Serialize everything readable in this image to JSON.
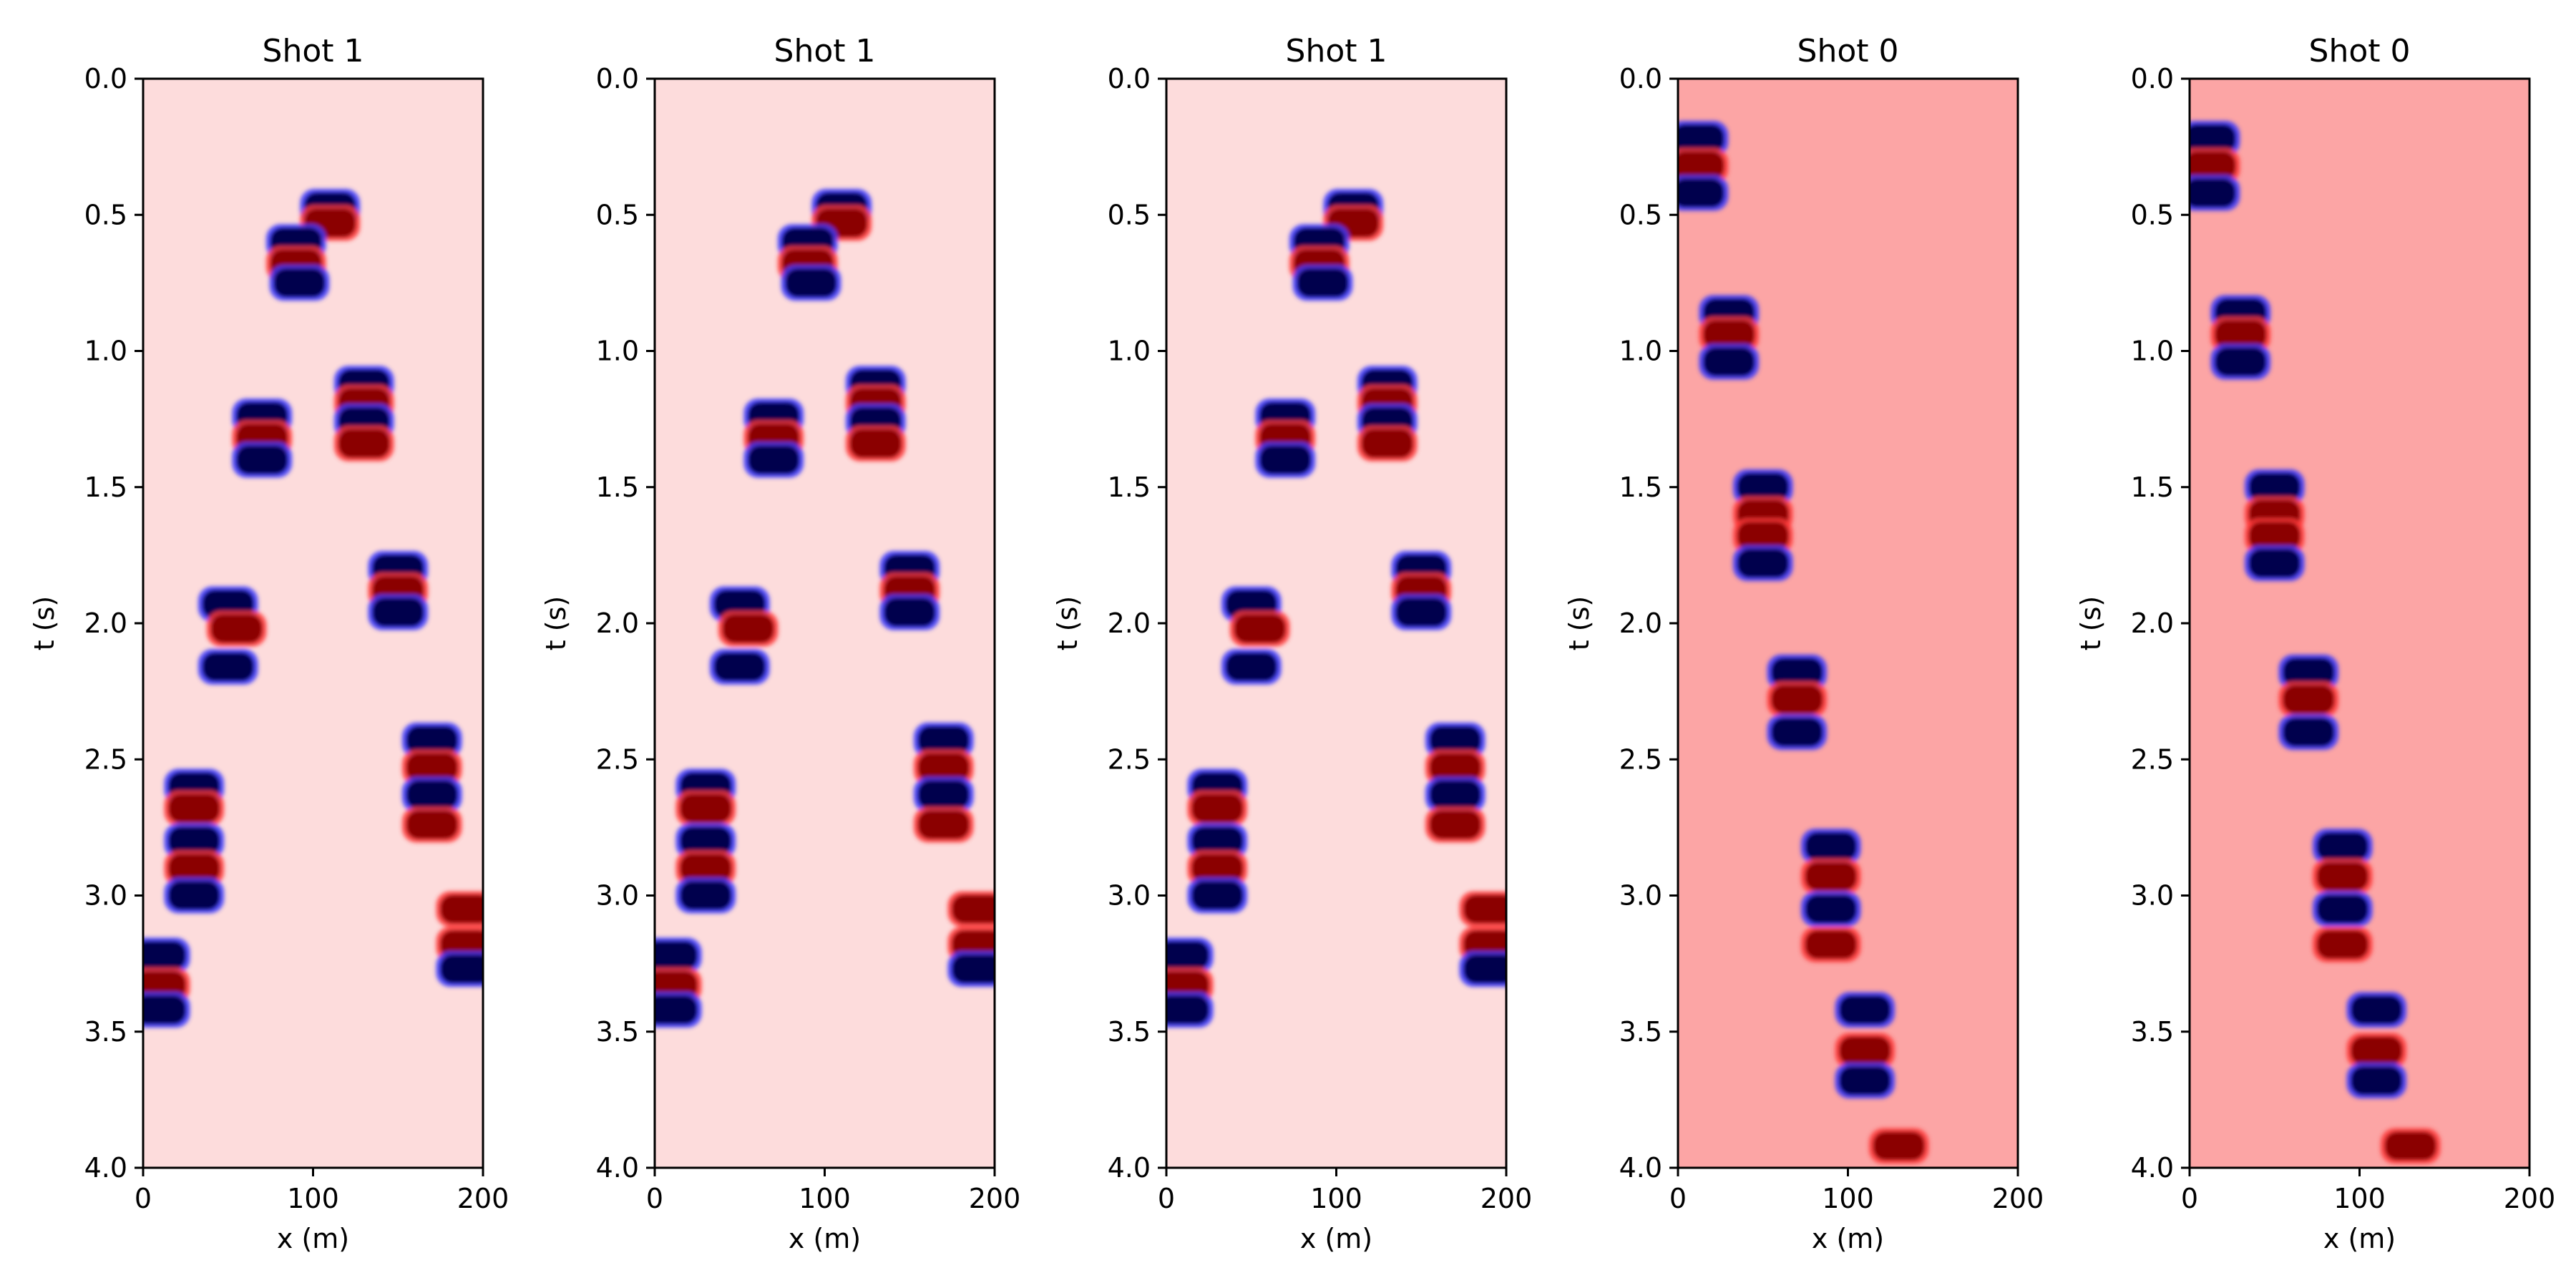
{
  "chart_data": [
    {
      "type": "heatmap",
      "title": "Shot 1",
      "xlabel": "x (m)",
      "ylabel": "t (s)",
      "xlim": [
        0,
        200
      ],
      "ylim": [
        4.0,
        0.0
      ],
      "x_ticks": [
        "0",
        "100",
        "200"
      ],
      "y_ticks": [
        "0.0",
        "0.5",
        "1.0",
        "1.5",
        "2.0",
        "2.5",
        "3.0",
        "3.5",
        "4.0"
      ],
      "colormap": "seismic",
      "background_color": "#fddcdc",
      "grid": false,
      "events": [
        {
          "x": 110,
          "t": 0.47,
          "sign": -1
        },
        {
          "x": 110,
          "t": 0.53,
          "sign": 1
        },
        {
          "x": 90,
          "t": 0.6,
          "sign": -1
        },
        {
          "x": 90,
          "t": 0.68,
          "sign": 1
        },
        {
          "x": 92,
          "t": 0.75,
          "sign": -1
        },
        {
          "x": 130,
          "t": 1.12,
          "sign": -1
        },
        {
          "x": 130,
          "t": 1.19,
          "sign": 1
        },
        {
          "x": 130,
          "t": 1.26,
          "sign": -1
        },
        {
          "x": 130,
          "t": 1.34,
          "sign": 1
        },
        {
          "x": 70,
          "t": 1.24,
          "sign": -1
        },
        {
          "x": 70,
          "t": 1.32,
          "sign": 1
        },
        {
          "x": 70,
          "t": 1.4,
          "sign": -1
        },
        {
          "x": 150,
          "t": 1.8,
          "sign": -1
        },
        {
          "x": 150,
          "t": 1.88,
          "sign": 1
        },
        {
          "x": 150,
          "t": 1.96,
          "sign": -1
        },
        {
          "x": 50,
          "t": 1.93,
          "sign": -1
        },
        {
          "x": 55,
          "t": 2.02,
          "sign": 1
        },
        {
          "x": 50,
          "t": 2.16,
          "sign": -1
        },
        {
          "x": 170,
          "t": 2.43,
          "sign": -1
        },
        {
          "x": 170,
          "t": 2.53,
          "sign": 1
        },
        {
          "x": 170,
          "t": 2.63,
          "sign": -1
        },
        {
          "x": 170,
          "t": 2.74,
          "sign": 1
        },
        {
          "x": 30,
          "t": 2.6,
          "sign": -1
        },
        {
          "x": 30,
          "t": 2.68,
          "sign": 1
        },
        {
          "x": 30,
          "t": 2.8,
          "sign": -1
        },
        {
          "x": 30,
          "t": 2.9,
          "sign": 1
        },
        {
          "x": 30,
          "t": 3.0,
          "sign": -1
        },
        {
          "x": 190,
          "t": 3.05,
          "sign": 1
        },
        {
          "x": 190,
          "t": 3.18,
          "sign": 1
        },
        {
          "x": 190,
          "t": 3.27,
          "sign": -1
        },
        {
          "x": 10,
          "t": 3.22,
          "sign": -1
        },
        {
          "x": 10,
          "t": 3.33,
          "sign": 1
        },
        {
          "x": 10,
          "t": 3.42,
          "sign": -1
        }
      ]
    },
    {
      "type": "heatmap",
      "title": "Shot 1",
      "xlabel": "x (m)",
      "ylabel": "t (s)",
      "xlim": [
        0,
        200
      ],
      "ylim": [
        4.0,
        0.0
      ],
      "x_ticks": [
        "0",
        "100",
        "200"
      ],
      "y_ticks": [
        "0.0",
        "0.5",
        "1.0",
        "1.5",
        "2.0",
        "2.5",
        "3.0",
        "3.5",
        "4.0"
      ],
      "colormap": "seismic",
      "background_color": "#fddcdc",
      "grid": false,
      "events": [
        {
          "x": 110,
          "t": 0.47,
          "sign": -1
        },
        {
          "x": 110,
          "t": 0.53,
          "sign": 1
        },
        {
          "x": 90,
          "t": 0.6,
          "sign": -1
        },
        {
          "x": 90,
          "t": 0.68,
          "sign": 1
        },
        {
          "x": 92,
          "t": 0.75,
          "sign": -1
        },
        {
          "x": 130,
          "t": 1.12,
          "sign": -1
        },
        {
          "x": 130,
          "t": 1.19,
          "sign": 1
        },
        {
          "x": 130,
          "t": 1.26,
          "sign": -1
        },
        {
          "x": 130,
          "t": 1.34,
          "sign": 1
        },
        {
          "x": 70,
          "t": 1.24,
          "sign": -1
        },
        {
          "x": 70,
          "t": 1.32,
          "sign": 1
        },
        {
          "x": 70,
          "t": 1.4,
          "sign": -1
        },
        {
          "x": 150,
          "t": 1.8,
          "sign": -1
        },
        {
          "x": 150,
          "t": 1.88,
          "sign": 1
        },
        {
          "x": 150,
          "t": 1.96,
          "sign": -1
        },
        {
          "x": 50,
          "t": 1.93,
          "sign": -1
        },
        {
          "x": 55,
          "t": 2.02,
          "sign": 1
        },
        {
          "x": 50,
          "t": 2.16,
          "sign": -1
        },
        {
          "x": 170,
          "t": 2.43,
          "sign": -1
        },
        {
          "x": 170,
          "t": 2.53,
          "sign": 1
        },
        {
          "x": 170,
          "t": 2.63,
          "sign": -1
        },
        {
          "x": 170,
          "t": 2.74,
          "sign": 1
        },
        {
          "x": 30,
          "t": 2.6,
          "sign": -1
        },
        {
          "x": 30,
          "t": 2.68,
          "sign": 1
        },
        {
          "x": 30,
          "t": 2.8,
          "sign": -1
        },
        {
          "x": 30,
          "t": 2.9,
          "sign": 1
        },
        {
          "x": 30,
          "t": 3.0,
          "sign": -1
        },
        {
          "x": 190,
          "t": 3.05,
          "sign": 1
        },
        {
          "x": 190,
          "t": 3.18,
          "sign": 1
        },
        {
          "x": 190,
          "t": 3.27,
          "sign": -1
        },
        {
          "x": 10,
          "t": 3.22,
          "sign": -1
        },
        {
          "x": 10,
          "t": 3.33,
          "sign": 1
        },
        {
          "x": 10,
          "t": 3.42,
          "sign": -1
        }
      ]
    },
    {
      "type": "heatmap",
      "title": "Shot 1",
      "xlabel": "x (m)",
      "ylabel": "t (s)",
      "xlim": [
        0,
        200
      ],
      "ylim": [
        4.0,
        0.0
      ],
      "x_ticks": [
        "0",
        "100",
        "200"
      ],
      "y_ticks": [
        "0.0",
        "0.5",
        "1.0",
        "1.5",
        "2.0",
        "2.5",
        "3.0",
        "3.5",
        "4.0"
      ],
      "colormap": "seismic",
      "background_color": "#fddcdc",
      "grid": false,
      "events": [
        {
          "x": 110,
          "t": 0.47,
          "sign": -1
        },
        {
          "x": 110,
          "t": 0.53,
          "sign": 1
        },
        {
          "x": 90,
          "t": 0.6,
          "sign": -1
        },
        {
          "x": 90,
          "t": 0.68,
          "sign": 1
        },
        {
          "x": 92,
          "t": 0.75,
          "sign": -1
        },
        {
          "x": 130,
          "t": 1.12,
          "sign": -1
        },
        {
          "x": 130,
          "t": 1.19,
          "sign": 1
        },
        {
          "x": 130,
          "t": 1.26,
          "sign": -1
        },
        {
          "x": 130,
          "t": 1.34,
          "sign": 1
        },
        {
          "x": 70,
          "t": 1.24,
          "sign": -1
        },
        {
          "x": 70,
          "t": 1.32,
          "sign": 1
        },
        {
          "x": 70,
          "t": 1.4,
          "sign": -1
        },
        {
          "x": 150,
          "t": 1.8,
          "sign": -1
        },
        {
          "x": 150,
          "t": 1.88,
          "sign": 1
        },
        {
          "x": 150,
          "t": 1.96,
          "sign": -1
        },
        {
          "x": 50,
          "t": 1.93,
          "sign": -1
        },
        {
          "x": 55,
          "t": 2.02,
          "sign": 1
        },
        {
          "x": 50,
          "t": 2.16,
          "sign": -1
        },
        {
          "x": 170,
          "t": 2.43,
          "sign": -1
        },
        {
          "x": 170,
          "t": 2.53,
          "sign": 1
        },
        {
          "x": 170,
          "t": 2.63,
          "sign": -1
        },
        {
          "x": 170,
          "t": 2.74,
          "sign": 1
        },
        {
          "x": 30,
          "t": 2.6,
          "sign": -1
        },
        {
          "x": 30,
          "t": 2.68,
          "sign": 1
        },
        {
          "x": 30,
          "t": 2.8,
          "sign": -1
        },
        {
          "x": 30,
          "t": 2.9,
          "sign": 1
        },
        {
          "x": 30,
          "t": 3.0,
          "sign": -1
        },
        {
          "x": 190,
          "t": 3.05,
          "sign": 1
        },
        {
          "x": 190,
          "t": 3.18,
          "sign": 1
        },
        {
          "x": 190,
          "t": 3.27,
          "sign": -1
        },
        {
          "x": 10,
          "t": 3.22,
          "sign": -1
        },
        {
          "x": 10,
          "t": 3.33,
          "sign": 1
        },
        {
          "x": 10,
          "t": 3.42,
          "sign": -1
        }
      ]
    },
    {
      "type": "heatmap",
      "title": "Shot 0",
      "xlabel": "x (m)",
      "ylabel": "t (s)",
      "xlim": [
        0,
        200
      ],
      "ylim": [
        4.0,
        0.0
      ],
      "x_ticks": [
        "0",
        "100",
        "200"
      ],
      "y_ticks": [
        "0.0",
        "0.5",
        "1.0",
        "1.5",
        "2.0",
        "2.5",
        "3.0",
        "3.5",
        "4.0"
      ],
      "colormap": "seismic",
      "background_color": "#fca5a5",
      "grid": false,
      "events": [
        {
          "x": 12,
          "t": 0.22,
          "sign": -1
        },
        {
          "x": 12,
          "t": 0.32,
          "sign": 1
        },
        {
          "x": 12,
          "t": 0.42,
          "sign": -1
        },
        {
          "x": 30,
          "t": 0.86,
          "sign": -1
        },
        {
          "x": 30,
          "t": 0.94,
          "sign": 1
        },
        {
          "x": 30,
          "t": 1.04,
          "sign": -1
        },
        {
          "x": 50,
          "t": 1.5,
          "sign": -1
        },
        {
          "x": 50,
          "t": 1.6,
          "sign": 1
        },
        {
          "x": 50,
          "t": 1.68,
          "sign": 1
        },
        {
          "x": 50,
          "t": 1.78,
          "sign": -1
        },
        {
          "x": 70,
          "t": 2.18,
          "sign": -1
        },
        {
          "x": 70,
          "t": 2.28,
          "sign": 1
        },
        {
          "x": 70,
          "t": 2.4,
          "sign": -1
        },
        {
          "x": 90,
          "t": 2.82,
          "sign": -1
        },
        {
          "x": 90,
          "t": 2.93,
          "sign": 1
        },
        {
          "x": 90,
          "t": 3.05,
          "sign": -1
        },
        {
          "x": 90,
          "t": 3.18,
          "sign": 1
        },
        {
          "x": 110,
          "t": 3.42,
          "sign": -1
        },
        {
          "x": 110,
          "t": 3.57,
          "sign": 1
        },
        {
          "x": 110,
          "t": 3.68,
          "sign": -1
        },
        {
          "x": 130,
          "t": 3.92,
          "sign": 1
        }
      ]
    },
    {
      "type": "heatmap",
      "title": "Shot 0",
      "xlabel": "x (m)",
      "ylabel": "t (s)",
      "xlim": [
        0,
        200
      ],
      "ylim": [
        4.0,
        0.0
      ],
      "x_ticks": [
        "0",
        "100",
        "200"
      ],
      "y_ticks": [
        "0.0",
        "0.5",
        "1.0",
        "1.5",
        "2.0",
        "2.5",
        "3.0",
        "3.5",
        "4.0"
      ],
      "colormap": "seismic",
      "background_color": "#fca5a5",
      "grid": false,
      "events": [
        {
          "x": 12,
          "t": 0.22,
          "sign": -1
        },
        {
          "x": 12,
          "t": 0.32,
          "sign": 1
        },
        {
          "x": 12,
          "t": 0.42,
          "sign": -1
        },
        {
          "x": 30,
          "t": 0.86,
          "sign": -1
        },
        {
          "x": 30,
          "t": 0.94,
          "sign": 1
        },
        {
          "x": 30,
          "t": 1.04,
          "sign": -1
        },
        {
          "x": 50,
          "t": 1.5,
          "sign": -1
        },
        {
          "x": 50,
          "t": 1.6,
          "sign": 1
        },
        {
          "x": 50,
          "t": 1.68,
          "sign": 1
        },
        {
          "x": 50,
          "t": 1.78,
          "sign": -1
        },
        {
          "x": 70,
          "t": 2.18,
          "sign": -1
        },
        {
          "x": 70,
          "t": 2.28,
          "sign": 1
        },
        {
          "x": 70,
          "t": 2.4,
          "sign": -1
        },
        {
          "x": 90,
          "t": 2.82,
          "sign": -1
        },
        {
          "x": 90,
          "t": 2.93,
          "sign": 1
        },
        {
          "x": 90,
          "t": 3.05,
          "sign": -1
        },
        {
          "x": 90,
          "t": 3.18,
          "sign": 1
        },
        {
          "x": 110,
          "t": 3.42,
          "sign": -1
        },
        {
          "x": 110,
          "t": 3.57,
          "sign": 1
        },
        {
          "x": 110,
          "t": 3.68,
          "sign": -1
        },
        {
          "x": 130,
          "t": 3.92,
          "sign": 1
        }
      ]
    }
  ]
}
